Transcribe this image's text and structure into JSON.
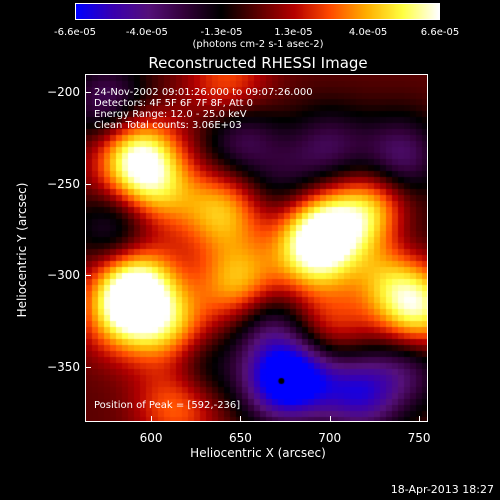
{
  "colorbar": {
    "ticks": [
      "-6.6e-05",
      "-4.0e-05",
      "-1.3e-05",
      "1.3e-05",
      "4.0e-05",
      "6.6e-05"
    ],
    "tick_values": [
      -6.6e-05,
      -4e-05,
      -1.3e-05,
      1.3e-05,
      4e-05,
      6.6e-05
    ],
    "units": "(photons cm-2 s-1 asec-2)",
    "range": [
      -6.6e-05,
      6.6e-05
    ],
    "colormap": [
      "#0000ff",
      "#3a00b0",
      "#55107a",
      "#320038",
      "#000000",
      "#5a0000",
      "#b40000",
      "#ff4a00",
      "#ffae00",
      "#ffff40",
      "#ffffff"
    ]
  },
  "chart_data": {
    "type": "heatmap",
    "title": "Reconstructed RHESSI Image",
    "xlabel": "Heliocentric X (arcsec)",
    "ylabel": "Heliocentric Y (arcsec)",
    "xlim": [
      563,
      755
    ],
    "ylim": [
      -380,
      -190
    ],
    "xticks": [
      "600",
      "650",
      "700",
      "750"
    ],
    "yticks": [
      "-200",
      "-250",
      "-300",
      "-350"
    ],
    "annotations": [
      "24-Nov-2002 09:01:26.000 to 09:07:26.000",
      "Detectors: 4F 5F 6F 7F 8F, Att 0",
      "Energy Range: 12.0 - 25.0 keV",
      "Clean    Total counts: 3.06E+03"
    ],
    "peak_label": "Position of Peak = [592,-236]",
    "peak": [
      592,
      -236
    ],
    "peak_value": 6.6e-05,
    "min_marker": [
      673,
      -358
    ],
    "min_value": -6.6e-05,
    "sources": [
      {
        "x": 592,
        "y": -236,
        "value": 6.6e-05
      },
      {
        "x": 592,
        "y": -305,
        "value": 5.6e-05
      },
      {
        "x": 585,
        "y": -320,
        "value": 4.8e-05
      },
      {
        "x": 650,
        "y": -305,
        "value": 4.6e-05
      },
      {
        "x": 697,
        "y": -275,
        "value": 6e-05
      },
      {
        "x": 725,
        "y": -265,
        "value": 5e-05
      },
      {
        "x": 750,
        "y": -320,
        "value": 5.5e-05
      },
      {
        "x": 612,
        "y": -330,
        "value": 4e-05
      },
      {
        "x": 643,
        "y": -195,
        "value": 2.8e-05
      },
      {
        "x": 690,
        "y": -290,
        "value": 3.8e-05
      },
      {
        "x": 605,
        "y": -255,
        "value": 3e-05
      },
      {
        "x": 640,
        "y": -265,
        "value": 4.2e-05
      },
      {
        "x": 735,
        "y": -300,
        "value": 3.8e-05
      },
      {
        "x": 615,
        "y": -370,
        "value": 3.5e-05
      },
      {
        "x": 700,
        "y": -330,
        "value": 2.5e-05
      },
      {
        "x": 673,
        "y": -358,
        "value": -6.6e-05
      },
      {
        "x": 718,
        "y": -365,
        "value": -5e-05
      },
      {
        "x": 625,
        "y": -350,
        "value": -2.8e-05
      },
      {
        "x": 650,
        "y": -225,
        "value": -3.2e-05
      },
      {
        "x": 700,
        "y": -230,
        "value": -3e-05
      },
      {
        "x": 740,
        "y": -235,
        "value": -3.8e-05
      },
      {
        "x": 580,
        "y": -275,
        "value": -3e-05
      },
      {
        "x": 575,
        "y": -205,
        "value": -3.5e-05
      },
      {
        "x": 665,
        "y": -325,
        "value": -3.2e-05
      },
      {
        "x": 690,
        "y": -355,
        "value": -3e-05
      },
      {
        "x": 745,
        "y": -350,
        "value": -3e-05
      },
      {
        "x": 740,
        "y": -280,
        "value": -2.5e-05
      },
      {
        "x": 675,
        "y": -250,
        "value": -2e-05
      }
    ]
  },
  "footer": "18-Apr-2013 18:27"
}
